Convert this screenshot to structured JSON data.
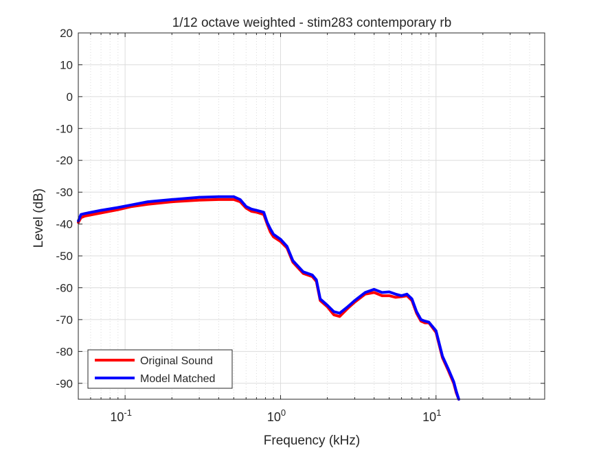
{
  "chart_data": {
    "type": "line",
    "title": "1/12 octave weighted - stim283 contemporary rb",
    "xlabel": "Frequency (kHz)",
    "ylabel": "Level (dB)",
    "x_scale": "log",
    "xlim": [
      0.05,
      50
    ],
    "ylim": [
      -95,
      20
    ],
    "x_ticks": [
      {
        "value": 0.1,
        "base": "10",
        "exp": "-1"
      },
      {
        "value": 1,
        "base": "10",
        "exp": "0"
      },
      {
        "value": 10,
        "base": "10",
        "exp": "1"
      }
    ],
    "y_ticks": [
      20,
      10,
      0,
      -10,
      -20,
      -30,
      -40,
      -50,
      -60,
      -70,
      -80,
      -90
    ],
    "grid": true,
    "legend_position": "bottom-left",
    "series": [
      {
        "name": "Original Sound",
        "color": "#ff0000",
        "x": [
          0.05,
          0.052,
          0.055,
          0.07,
          0.09,
          0.11,
          0.14,
          0.2,
          0.3,
          0.4,
          0.5,
          0.55,
          0.6,
          0.65,
          0.7,
          0.78,
          0.82,
          0.86,
          0.9,
          1.0,
          1.1,
          1.2,
          1.4,
          1.6,
          1.7,
          1.8,
          2.0,
          2.2,
          2.4,
          2.7,
          3.0,
          3.5,
          4.0,
          4.5,
          5.0,
          5.5,
          6.0,
          6.5,
          7.0,
          7.5,
          8.0,
          8.5,
          9.0,
          10.0,
          11.0,
          12.0,
          13.0,
          13.5,
          14.0
        ],
        "y": [
          -39.5,
          -38.0,
          -37.5,
          -36.5,
          -35.5,
          -34.5,
          -33.8,
          -33.0,
          -32.5,
          -32.3,
          -32.3,
          -33.0,
          -35.0,
          -36.0,
          -36.3,
          -37.0,
          -40.0,
          -42.5,
          -44.0,
          -45.5,
          -47.5,
          -52.0,
          -55.5,
          -56.5,
          -58.0,
          -64.0,
          -66.0,
          -68.5,
          -69.0,
          -66.5,
          -64.5,
          -62.0,
          -61.5,
          -62.5,
          -62.5,
          -63.0,
          -62.8,
          -62.5,
          -64.0,
          -68.0,
          -70.5,
          -71.0,
          -71.0,
          -74.0,
          -82.0,
          -86.0,
          -90.0,
          -93.0,
          -95.0
        ]
      },
      {
        "name": "Model Matched",
        "color": "#0000ff",
        "x": [
          0.05,
          0.052,
          0.055,
          0.07,
          0.09,
          0.11,
          0.14,
          0.2,
          0.3,
          0.4,
          0.5,
          0.55,
          0.6,
          0.65,
          0.7,
          0.78,
          0.82,
          0.86,
          0.9,
          1.0,
          1.1,
          1.2,
          1.4,
          1.6,
          1.7,
          1.8,
          2.0,
          2.2,
          2.4,
          2.7,
          3.0,
          3.5,
          4.0,
          4.5,
          5.0,
          5.5,
          6.0,
          6.5,
          7.0,
          7.5,
          8.0,
          8.5,
          9.0,
          10.0,
          11.0,
          12.0,
          13.0,
          13.5,
          14.0
        ],
        "y": [
          -39.0,
          -37.0,
          -36.7,
          -35.7,
          -34.8,
          -34.0,
          -33.0,
          -32.3,
          -31.6,
          -31.4,
          -31.4,
          -32.3,
          -34.5,
          -35.3,
          -35.7,
          -36.3,
          -39.5,
          -41.5,
          -43.2,
          -44.8,
          -47.0,
          -51.5,
          -55.0,
          -56.0,
          -57.5,
          -63.5,
          -65.5,
          -67.5,
          -68.0,
          -66.0,
          -64.0,
          -61.5,
          -60.5,
          -61.5,
          -61.3,
          -62.0,
          -62.5,
          -62.0,
          -63.5,
          -67.5,
          -70.0,
          -70.5,
          -70.8,
          -73.5,
          -81.5,
          -85.5,
          -89.5,
          -92.5,
          -95.0
        ]
      }
    ]
  }
}
